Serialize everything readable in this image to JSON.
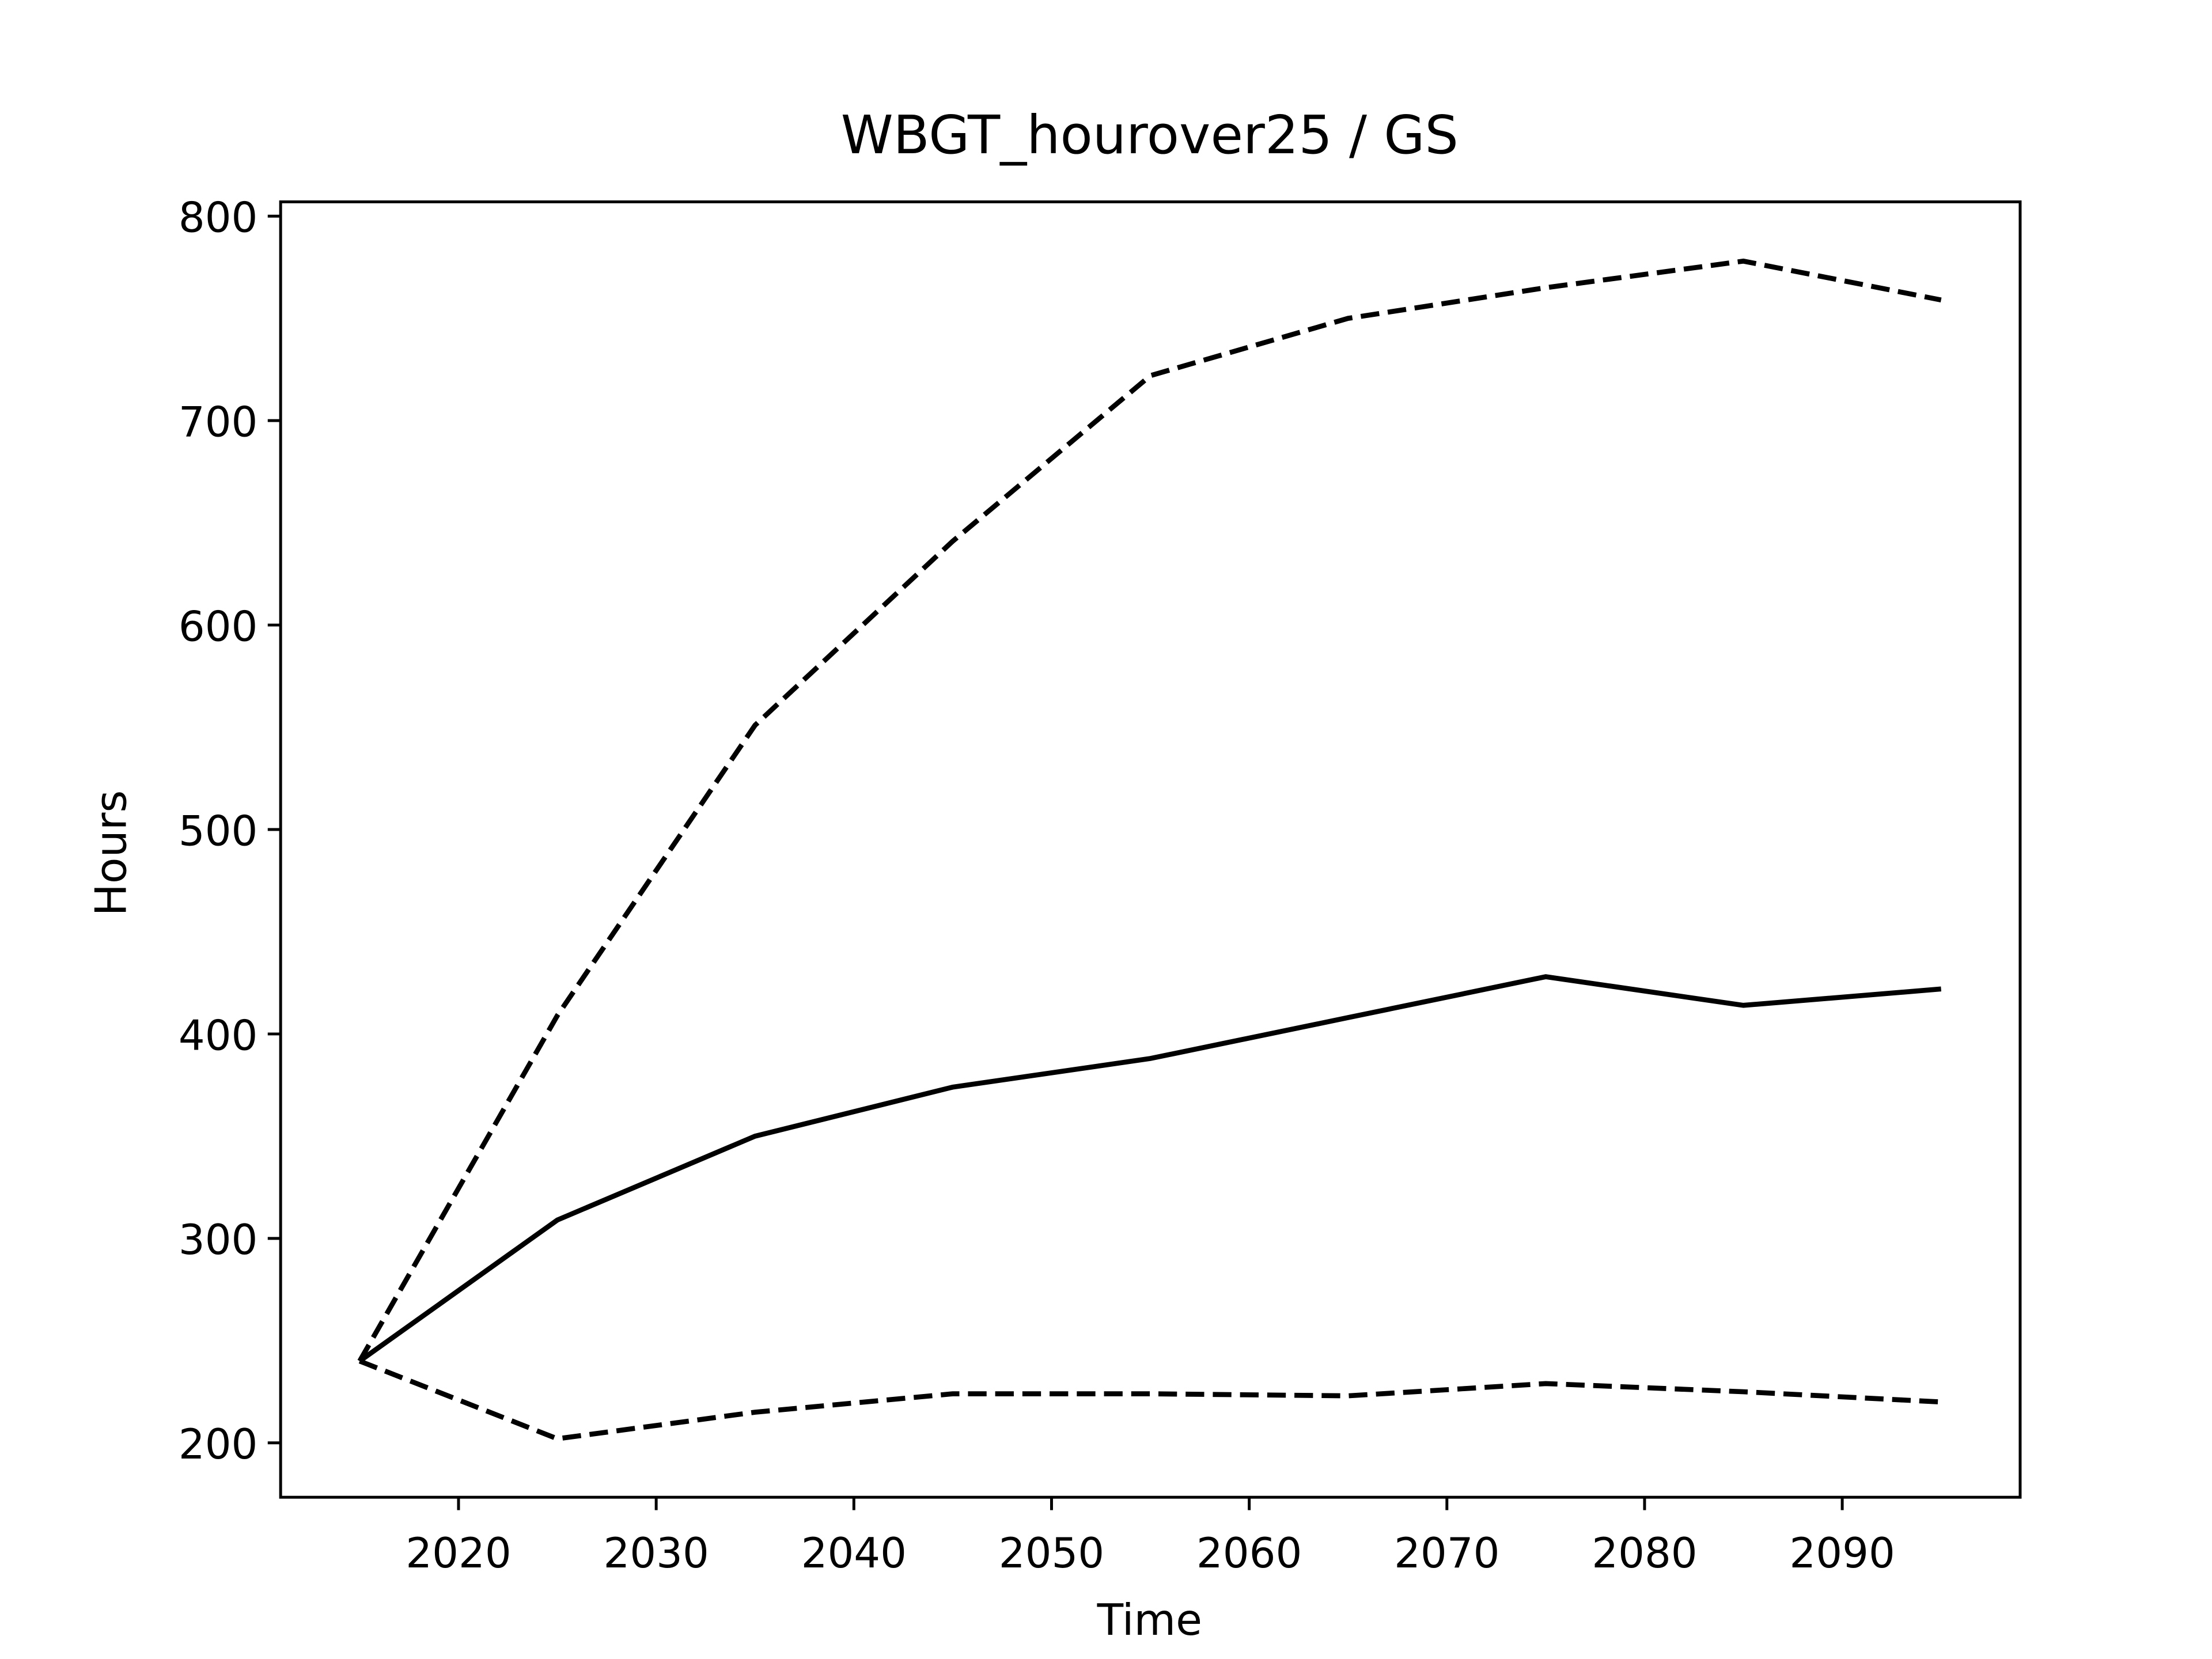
{
  "chart_data": {
    "type": "line",
    "title": "WBGT_hourover25 / GS",
    "xlabel": "Time",
    "ylabel": "Hours",
    "x": [
      2015,
      2025,
      2035,
      2045,
      2055,
      2065,
      2075,
      2085,
      2095
    ],
    "series": [
      {
        "color": "#000000",
        "dash": "dashed",
        "values": [
          240,
          409,
          551,
          641,
          722,
          750,
          765,
          778,
          759
        ]
      },
      {
        "color": "#000000",
        "dash": "solid",
        "values": [
          240,
          309,
          350,
          374,
          388,
          408,
          428,
          414,
          422
        ]
      },
      {
        "color": "#000000",
        "dash": "dashed",
        "values": [
          240,
          202,
          215,
          224,
          224,
          223,
          229,
          225,
          220
        ]
      }
    ],
    "xlim": [
      2011,
      2099
    ],
    "xticks": [
      2020,
      2030,
      2040,
      2050,
      2060,
      2070,
      2080,
      2090
    ],
    "ylim": [
      173.4,
      807
    ],
    "yticks": [
      200,
      300,
      400,
      500,
      600,
      700,
      800
    ],
    "grid": false
  }
}
